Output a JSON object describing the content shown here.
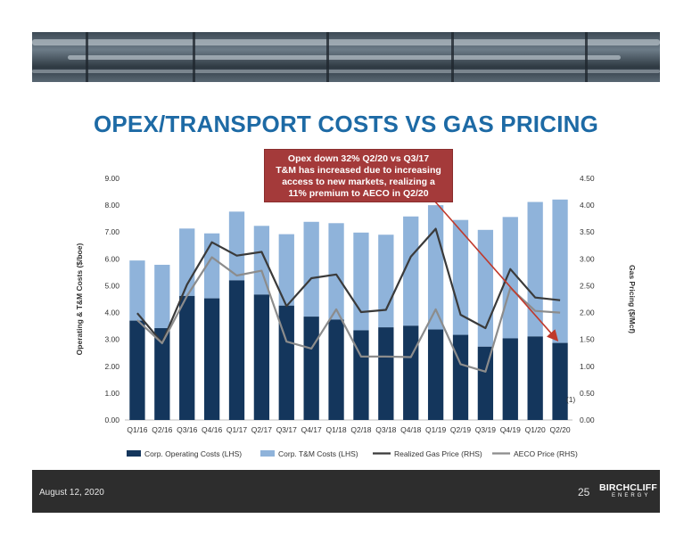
{
  "title": "OPEX/TRANSPORT COSTS VS GAS PRICING",
  "callout": {
    "line1": "Opex down 32% Q2/20 vs Q3/17",
    "line2": "T&M has increased due to increasing",
    "line3": "access to new markets, realizing a",
    "line4": "11% premium to AECO in Q2/20"
  },
  "footer": {
    "date": "August 12, 2020",
    "page": "25",
    "logo": "BIRCHCLIFF",
    "logo_sub": "ENERGY"
  },
  "colors": {
    "title": "#1d6aa5",
    "opex": "#14365c",
    "tm": "#8fb3da",
    "realized": "#3a3a3a",
    "aeco": "#8c8c8c",
    "arrow": "#c0392b",
    "callout": "#a43a3a"
  },
  "chart_data": {
    "type": "bar",
    "stacked": true,
    "categories": [
      "Q1/16",
      "Q2/16",
      "Q3/16",
      "Q4/16",
      "Q1/17",
      "Q2/17",
      "Q3/17",
      "Q4/17",
      "Q1/18",
      "Q2/18",
      "Q3/18",
      "Q4/18",
      "Q1/19",
      "Q2/19",
      "Q3/19",
      "Q4/19",
      "Q1/20",
      "Q2/20"
    ],
    "series": [
      {
        "name": "Corp. Operating Costs (LHS)",
        "type": "bar",
        "axis": "left",
        "values": [
          3.7,
          3.42,
          4.62,
          4.53,
          5.2,
          4.67,
          4.26,
          3.85,
          3.74,
          3.34,
          3.45,
          3.51,
          3.37,
          3.17,
          2.73,
          3.04,
          3.11,
          2.87
        ]
      },
      {
        "name": "Corp. T&M Costs (LHS)",
        "type": "bar",
        "axis": "left",
        "values": [
          2.24,
          2.36,
          2.51,
          2.42,
          2.56,
          2.56,
          2.66,
          3.53,
          3.59,
          3.64,
          3.45,
          4.07,
          4.63,
          4.28,
          4.35,
          4.52,
          5.01,
          5.34
        ]
      },
      {
        "name": "Realized Gas Price (RHS)",
        "type": "line",
        "axis": "right",
        "values": [
          1.99,
          1.44,
          2.52,
          3.31,
          3.06,
          3.13,
          2.12,
          2.64,
          2.71,
          2.01,
          2.05,
          3.04,
          3.56,
          1.96,
          1.71,
          2.81,
          2.28,
          2.23
        ]
      },
      {
        "name": "AECO Price (RHS)",
        "type": "line",
        "axis": "right",
        "values": [
          1.86,
          1.43,
          2.31,
          3.03,
          2.69,
          2.78,
          1.46,
          1.33,
          2.06,
          1.18,
          1.18,
          1.17,
          2.06,
          1.04,
          0.9,
          2.46,
          2.03,
          2.0
        ]
      }
    ],
    "ylabel": "Operating & T&M Costs ($/boe)",
    "y2label": "Gas Pricing ($/Mcf)",
    "ylim": [
      0,
      9
    ],
    "y2lim": [
      0,
      4.5
    ],
    "yticks": [
      "0.00",
      "1.00",
      "2.00",
      "3.00",
      "4.00",
      "5.00",
      "6.00",
      "7.00",
      "8.00",
      "9.00"
    ],
    "y2ticks": [
      "0.00",
      "0.50",
      "1.00",
      "1.50",
      "2.00",
      "2.50",
      "3.00",
      "3.50",
      "4.00",
      "4.50"
    ],
    "footnote_marker": "(1)",
    "legend_position": "bottom",
    "grid": false
  }
}
